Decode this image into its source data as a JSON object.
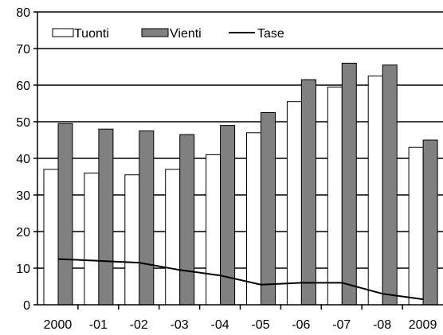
{
  "chart_data": {
    "type": "bar",
    "categories": [
      "2000",
      "-01",
      "-02",
      "-03",
      "-04",
      "-05",
      "-06",
      "-07",
      "-08",
      "2009"
    ],
    "series": [
      {
        "name": "Tuonti",
        "kind": "bar",
        "color": "#ffffff",
        "values": [
          37,
          36,
          35.5,
          37,
          41,
          47,
          55.5,
          59.5,
          62.5,
          43
        ]
      },
      {
        "name": "Vienti",
        "kind": "bar",
        "color": "#808080",
        "values": [
          49.5,
          48,
          47.5,
          46.5,
          49,
          52.5,
          61.5,
          66,
          65.5,
          45
        ]
      },
      {
        "name": "Tase",
        "kind": "line",
        "color": "#000000",
        "values": [
          12.5,
          12,
          11.5,
          9.5,
          8,
          5.5,
          6,
          6,
          3,
          1.5
        ]
      }
    ],
    "ylim": [
      0,
      80
    ],
    "yticks": [
      0,
      10,
      20,
      30,
      40,
      50,
      60,
      70,
      80
    ],
    "grid": true,
    "legend": "top-left",
    "title": "",
    "xlabel": "",
    "ylabel": ""
  }
}
